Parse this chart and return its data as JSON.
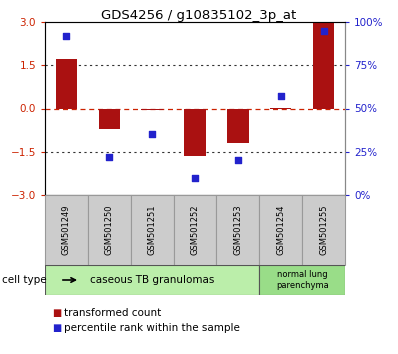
{
  "title": "GDS4256 / g10835102_3p_at",
  "samples": [
    "GSM501249",
    "GSM501250",
    "GSM501251",
    "GSM501252",
    "GSM501253",
    "GSM501254",
    "GSM501255"
  ],
  "transformed_count": [
    1.72,
    -0.72,
    -0.05,
    -1.65,
    -1.2,
    0.03,
    2.95
  ],
  "percentile_rank": [
    92,
    22,
    35,
    10,
    20,
    57,
    95
  ],
  "ylim": [
    -3,
    3
  ],
  "yticks_left": [
    -3,
    -1.5,
    0,
    1.5,
    3
  ],
  "yticks_right": [
    0,
    25,
    50,
    75,
    100
  ],
  "bar_color": "#aa1111",
  "dot_color": "#2222cc",
  "zero_line_color": "#cc2200",
  "group1_label": "caseous TB granulomas",
  "group2_label": "normal lung\nparenchyma",
  "group1_count": 5,
  "group2_count": 2,
  "group1_color": "#bbeeaa",
  "group2_color": "#99dd88",
  "cell_type_label": "cell type",
  "legend_bar_label": "transformed count",
  "legend_dot_label": "percentile rank within the sample",
  "background_color": "#ffffff",
  "tick_color_left": "#cc2200",
  "tick_color_right": "#2222cc",
  "box_color": "#cccccc",
  "box_edge_color": "#999999"
}
